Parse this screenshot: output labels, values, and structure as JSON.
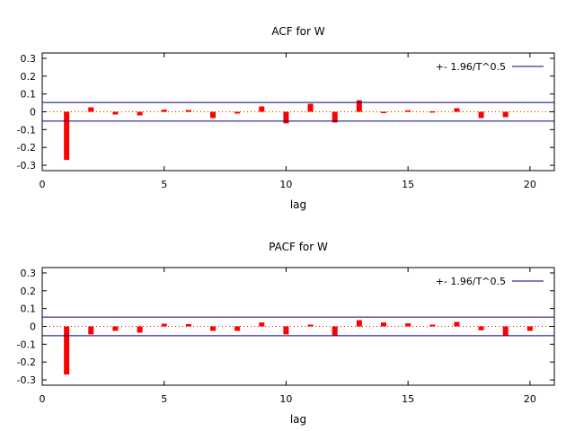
{
  "chart_data": [
    {
      "type": "bar",
      "title": "ACF for W",
      "xlabel": "lag",
      "ylabel": "",
      "xlim": [
        0,
        21
      ],
      "ylim": [
        -0.33,
        0.33
      ],
      "xticks": [
        0,
        5,
        10,
        15,
        20
      ],
      "xtick_labels": [
        "0",
        "5",
        "10",
        "15",
        "20"
      ],
      "yticks": [
        -0.3,
        -0.2,
        -0.1,
        0,
        0.1,
        0.2,
        0.3
      ],
      "ytick_labels": [
        "-0.3",
        "-0.2",
        "-0.1",
        "0",
        "0.1",
        "0.2",
        "0.3"
      ],
      "lags": [
        1,
        2,
        3,
        4,
        5,
        6,
        7,
        8,
        9,
        10,
        11,
        12,
        13,
        14,
        15,
        16,
        17,
        18,
        19
      ],
      "values": [
        -0.27,
        0.025,
        -0.015,
        -0.02,
        0.012,
        0.01,
        -0.035,
        -0.01,
        0.03,
        -0.065,
        0.045,
        -0.06,
        0.065,
        0.0,
        0.008,
        0.003,
        0.02,
        -0.035,
        -0.03
      ],
      "bound": 0.0525,
      "legend": "+- 1.96/T^0.5",
      "legend_position": "top-right",
      "grid": false,
      "bar_color": "#ff0000",
      "bound_color": "#00007f"
    },
    {
      "type": "bar",
      "title": "PACF for W",
      "xlabel": "lag",
      "ylabel": "",
      "xlim": [
        0,
        21
      ],
      "ylim": [
        -0.33,
        0.33
      ],
      "xticks": [
        0,
        5,
        10,
        15,
        20
      ],
      "xtick_labels": [
        "0",
        "5",
        "10",
        "15",
        "20"
      ],
      "yticks": [
        -0.3,
        -0.2,
        -0.1,
        0,
        0.1,
        0.2,
        0.3
      ],
      "ytick_labels": [
        "-0.3",
        "-0.2",
        "-0.1",
        "0",
        "0.1",
        "0.2",
        "0.3"
      ],
      "lags": [
        1,
        2,
        3,
        4,
        5,
        6,
        7,
        8,
        9,
        10,
        11,
        12,
        13,
        14,
        15,
        16,
        17,
        18,
        19,
        20
      ],
      "values": [
        -0.27,
        -0.045,
        -0.025,
        -0.035,
        0.015,
        0.013,
        -0.025,
        -0.025,
        0.022,
        -0.045,
        0.01,
        -0.05,
        0.035,
        0.022,
        0.017,
        0.01,
        0.025,
        -0.022,
        -0.05,
        -0.025
      ],
      "bound": 0.0525,
      "legend": "+- 1.96/T^0.5",
      "legend_position": "top-right",
      "grid": false,
      "bar_color": "#ff0000",
      "bound_color": "#00007f"
    }
  ]
}
